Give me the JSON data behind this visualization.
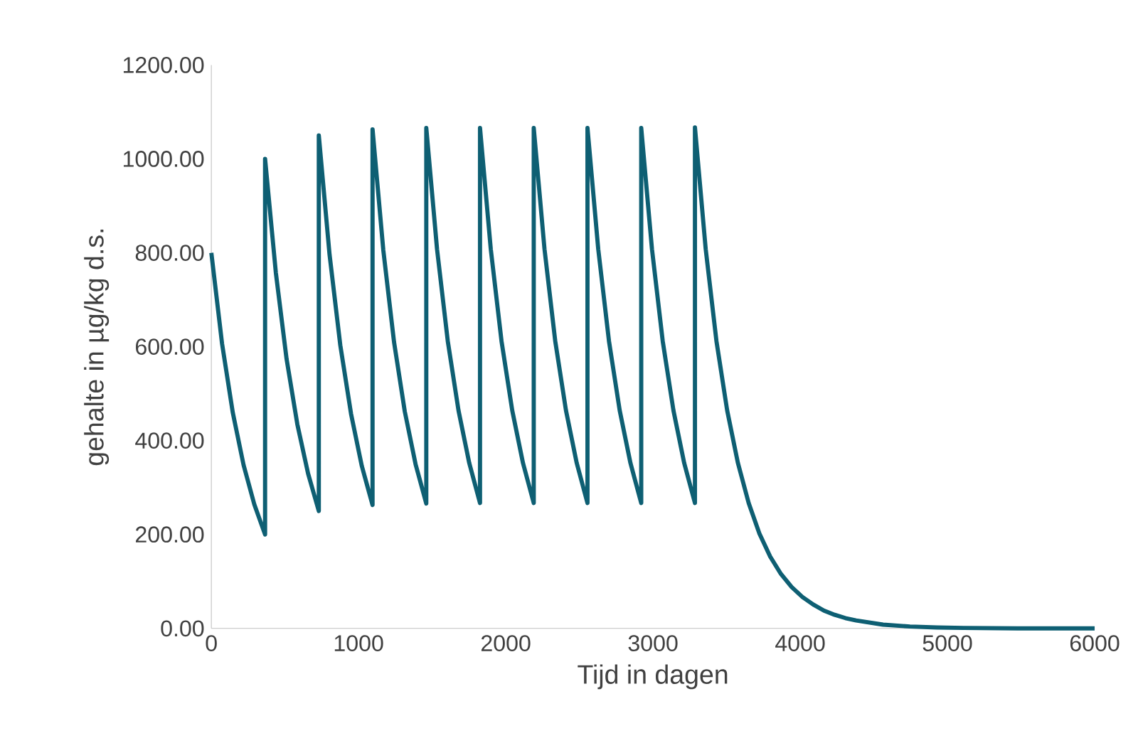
{
  "chart_data": {
    "type": "line",
    "xlabel": "Tijd in dagen",
    "ylabel": "gehalte in µg/kg d.s.",
    "xlim": [
      0,
      6000
    ],
    "xticks": [
      0,
      1000,
      2000,
      3000,
      4000,
      5000,
      6000
    ],
    "ylim": [
      0,
      1200
    ],
    "yticks": [
      {
        "value": 0,
        "label": "0.00"
      },
      {
        "value": 200,
        "label": "200.00"
      },
      {
        "value": 400,
        "label": "400.00"
      },
      {
        "value": 600,
        "label": "600.00"
      },
      {
        "value": 800,
        "label": "800.00"
      },
      {
        "value": 1000,
        "label": "1000.00"
      },
      {
        "value": 1200,
        "label": "1200.00"
      }
    ],
    "grid": false,
    "marker": "none",
    "line_style": "solid",
    "x": [
      0,
      73,
      146,
      219,
      292,
      365,
      365,
      438,
      511,
      584,
      657,
      730,
      730,
      803,
      876,
      949,
      1022,
      1095,
      1095,
      1168,
      1241,
      1314,
      1387,
      1460,
      1460,
      1533,
      1606,
      1679,
      1752,
      1825,
      1825,
      1898,
      1971,
      2044,
      2117,
      2190,
      2190,
      2263,
      2336,
      2409,
      2482,
      2555,
      2555,
      2628,
      2701,
      2774,
      2847,
      2920,
      2920,
      2993,
      3066,
      3139,
      3212,
      3285,
      3285,
      3358,
      3431,
      3504,
      3577,
      3650,
      3723,
      3796,
      3869,
      3942,
      4015,
      4088,
      4161,
      4234,
      4307,
      4380,
      4563,
      4745,
      4928,
      5110,
      5475,
      6000
    ],
    "series": [
      {
        "color": "#0e5f73",
        "values": [
          800,
          606,
          459,
          348,
          264,
          200,
          1000,
          758,
          574,
          435,
          330,
          250,
          1050,
          796,
          603,
          457,
          346,
          263,
          1063,
          806,
          610,
          462,
          350,
          266,
          1066,
          808,
          612,
          464,
          352,
          267,
          1066,
          808,
          612,
          464,
          352,
          267,
          1066,
          808,
          612,
          464,
          352,
          267,
          1066,
          808,
          612,
          464,
          352,
          267,
          1066,
          808,
          612,
          464,
          352,
          267,
          1067,
          808,
          612,
          464,
          352,
          267,
          202,
          153,
          116,
          88,
          67,
          51,
          38,
          29,
          22,
          17,
          8,
          4,
          2,
          1,
          0,
          0
        ]
      }
    ]
  }
}
